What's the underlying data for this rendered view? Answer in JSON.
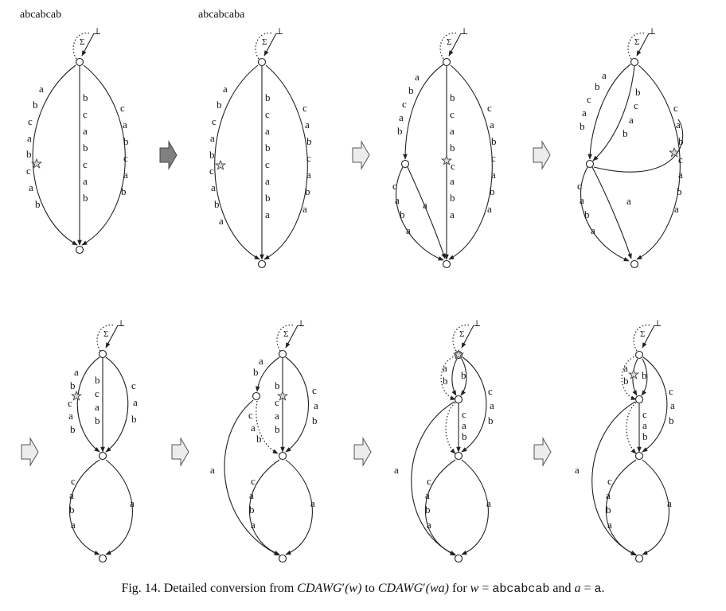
{
  "top_words": [
    "abcabcab",
    "abcabcaba"
  ],
  "sigma_symbol": "Σ",
  "bottom_symbol": "⊥",
  "caption": {
    "prefix": "Fig. 14. Detailed conversion from ",
    "f1": "CDAWG",
    "prime": "′",
    "arg_w": "(w)",
    "to": " to ",
    "f2": "CDAWG",
    "arg_wa": "(wa)",
    "for": " for ",
    "w_var": "w",
    "eq1": " = ",
    "w_val": "abcabcab",
    "and": " and ",
    "a_var": "a",
    "eq2": " = ",
    "a_val": "a",
    "period": "."
  },
  "panels": [
    {
      "id": "p1",
      "left_edge": [
        "a",
        "b",
        "c",
        "a",
        "b",
        "c",
        "a",
        "b"
      ],
      "middle_edge": [
        "b",
        "c",
        "a",
        "b",
        "c",
        "a",
        "b"
      ],
      "right_edge": [
        "c",
        "a",
        "b",
        "c",
        "a",
        "b"
      ]
    },
    {
      "id": "p2",
      "left_edge": [
        "a",
        "b",
        "c",
        "a",
        "b",
        "c",
        "a",
        "b",
        "a"
      ],
      "middle_edge": [
        "b",
        "c",
        "a",
        "b",
        "c",
        "a",
        "b",
        "a"
      ],
      "right_edge": [
        "c",
        "a",
        "b",
        "c",
        "a",
        "b",
        "a"
      ]
    },
    {
      "id": "p3",
      "left_upper": [
        "a",
        "b",
        "c",
        "a",
        "b"
      ],
      "left_lower": [
        "c",
        "a",
        "b",
        "a"
      ],
      "short_a": [
        "a"
      ],
      "middle_edge": [
        "b",
        "c",
        "a",
        "b",
        "c",
        "a",
        "b",
        "a"
      ],
      "right_edge": [
        "c",
        "a",
        "b",
        "c",
        "a",
        "b",
        "a"
      ]
    },
    {
      "id": "p4",
      "left_upper": [
        "a",
        "b",
        "c",
        "a",
        "b"
      ],
      "inner_edge": [
        "b",
        "c",
        "a",
        "b"
      ],
      "left_lower": [
        "c",
        "a",
        "b",
        "a"
      ],
      "short_a": [
        "a"
      ],
      "right_edge": [
        "c",
        "a",
        "b",
        "c",
        "a",
        "b",
        "a"
      ]
    },
    {
      "id": "p5",
      "left_upper": [
        "a",
        "b",
        "c",
        "a",
        "b"
      ],
      "middle_edge": [
        "b",
        "c",
        "a",
        "b"
      ],
      "right_upper": [
        "c",
        "a",
        "b"
      ],
      "lower_left": [
        "c",
        "a",
        "b",
        "a"
      ],
      "lower_right": [
        "a"
      ]
    },
    {
      "id": "p6",
      "top_left": [
        "a",
        "b"
      ],
      "middle_edge": [
        "b",
        "c",
        "a",
        "b"
      ],
      "right_upper": [
        "c",
        "a",
        "b"
      ],
      "mid_left": [
        "c",
        "a",
        "b"
      ],
      "outer_a": [
        "a"
      ],
      "lower_left": [
        "c",
        "a",
        "b",
        "a"
      ],
      "lower_right": [
        "a"
      ]
    },
    {
      "id": "p7",
      "top_left": [
        "a",
        "b"
      ],
      "top_right": [
        "b"
      ],
      "mid_edge": [
        "c",
        "a",
        "b"
      ],
      "right_upper": [
        "c",
        "a",
        "b"
      ],
      "outer_a": [
        "a"
      ],
      "lower_left": [
        "c",
        "a",
        "b",
        "a"
      ],
      "lower_right": [
        "a"
      ]
    },
    {
      "id": "p8",
      "top_left": [
        "a",
        "b"
      ],
      "top_right": [
        "b"
      ],
      "mid_edge": [
        "c",
        "a",
        "b"
      ],
      "right_upper": [
        "c",
        "a",
        "b"
      ],
      "outer_a": [
        "a"
      ],
      "lower_left": [
        "c",
        "a",
        "b",
        "a"
      ],
      "lower_right": [
        "a"
      ]
    }
  ]
}
